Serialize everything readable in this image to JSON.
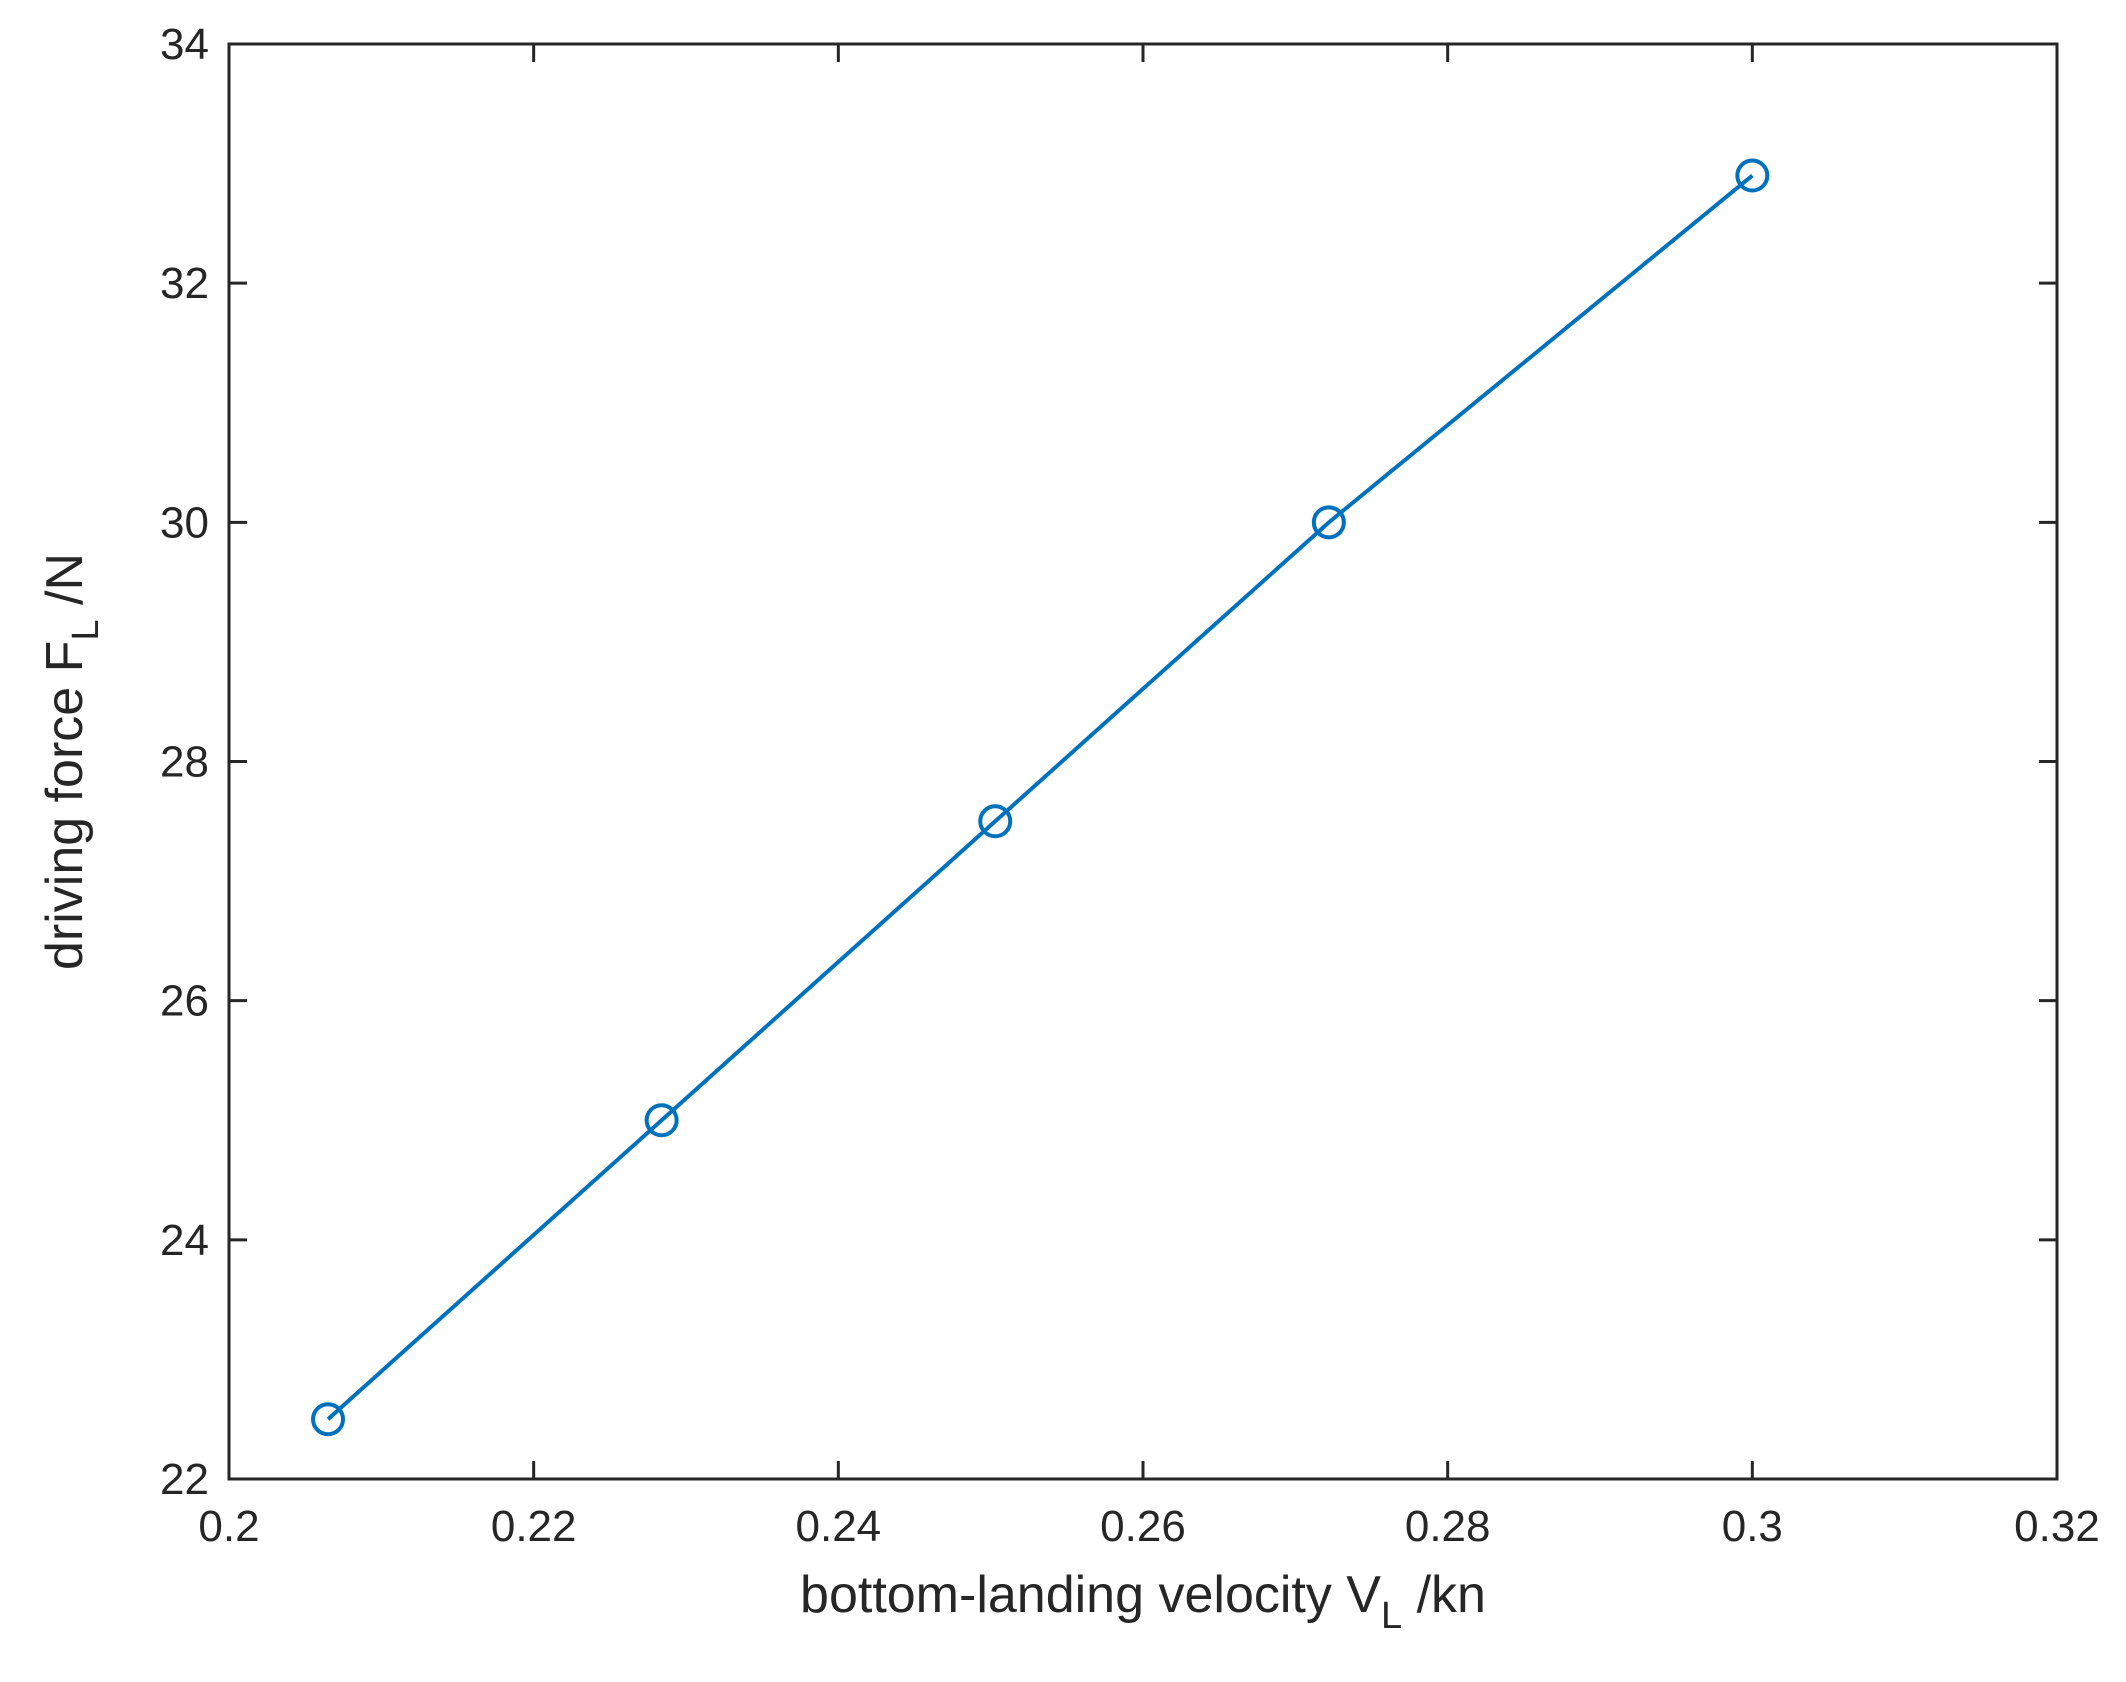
{
  "chart_data": {
    "type": "line",
    "xlabel": {
      "main": "bottom-landing velocity V",
      "sub": "L",
      "unit": " /kn"
    },
    "ylabel": {
      "main": "driving force F",
      "sub": "L",
      "unit": " /N"
    },
    "xlim": [
      0.2,
      0.32
    ],
    "ylim": [
      22,
      34
    ],
    "xticks": [
      0.2,
      0.22,
      0.24,
      0.26,
      0.28,
      0.3,
      0.32
    ],
    "xtick_labels": [
      "0.2",
      "0.22",
      "0.24",
      "0.26",
      "0.28",
      "0.3",
      "0.32"
    ],
    "yticks": [
      22,
      24,
      26,
      28,
      30,
      32,
      34
    ],
    "ytick_labels": [
      "22",
      "24",
      "26",
      "28",
      "30",
      "32",
      "34"
    ],
    "grid": false,
    "series": [
      {
        "color": "#0072BD",
        "marker": "circle",
        "x": [
          0.2065,
          0.2284,
          0.2503,
          0.2722,
          0.3
        ],
        "y": [
          22.5,
          25.0,
          27.5,
          30.0,
          32.9
        ]
      }
    ]
  }
}
